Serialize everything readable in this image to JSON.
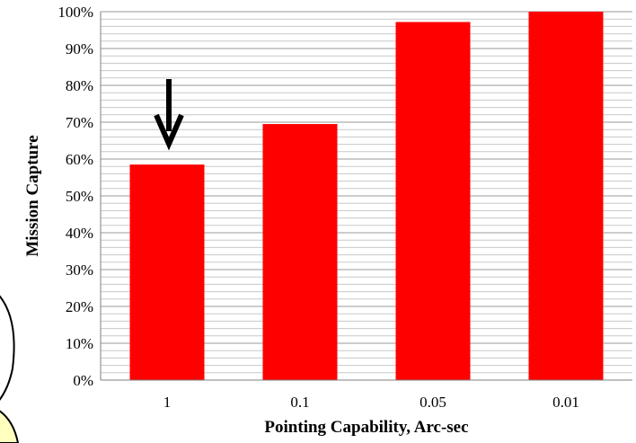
{
  "chart_data": {
    "type": "bar",
    "title": "",
    "xlabel": "Pointing Capability, Arc-sec",
    "ylabel": "Mission Capture",
    "categories": [
      "1",
      "0.1",
      "0.05",
      "0.01"
    ],
    "values": [
      58.5,
      69.5,
      97.2,
      100
    ],
    "ylim": [
      0,
      100
    ],
    "yticks": [
      "0%",
      "10%",
      "20%",
      "30%",
      "40%",
      "50%",
      "60%",
      "70%",
      "80%",
      "90%",
      "100%"
    ],
    "bar_color": "#ff0000",
    "grid": true,
    "legend": "none",
    "annotation": {
      "type": "arrow",
      "target_category": "1",
      "color": "#000000"
    }
  }
}
